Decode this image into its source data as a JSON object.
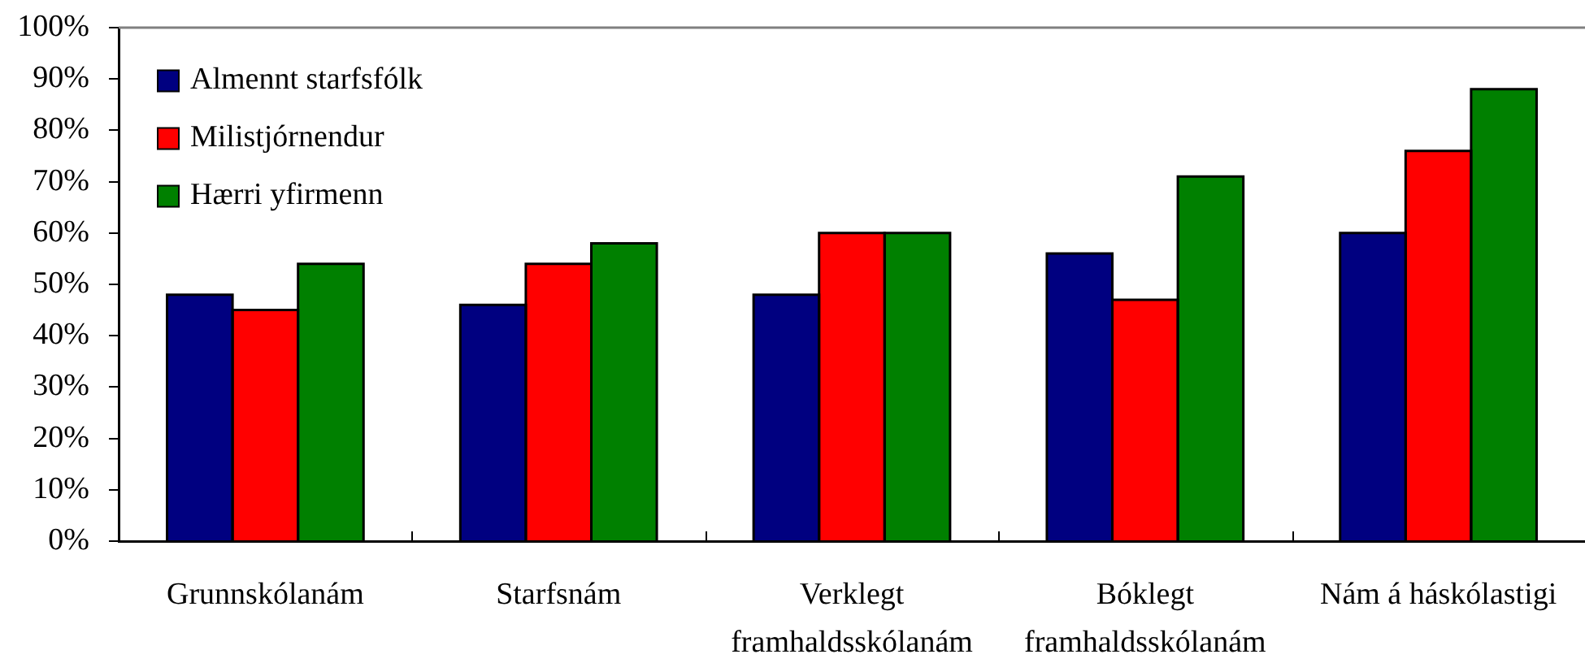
{
  "chart_data": {
    "type": "bar",
    "categories": [
      "Grunnskólanám",
      "Starfsnám",
      "Verklegt framhaldsskólanám",
      "Bóklegt framhaldsskólanám",
      "Nám á háskólastigi"
    ],
    "series": [
      {
        "name": "Almennt starfsfólk",
        "color": "#000080",
        "values": [
          48,
          46,
          48,
          56,
          60
        ]
      },
      {
        "name": "Milistjórnendur",
        "color": "#ff0000",
        "values": [
          45,
          54,
          60,
          47,
          76
        ]
      },
      {
        "name": "Hærri yfirmenn",
        "color": "#008000",
        "values": [
          54,
          58,
          60,
          71,
          88
        ]
      }
    ],
    "ylim": [
      0,
      100
    ],
    "yticks": [
      {
        "value": 0,
        "label": "0%"
      },
      {
        "value": 10,
        "label": "10%"
      },
      {
        "value": 20,
        "label": "20%"
      },
      {
        "value": 30,
        "label": "30%"
      },
      {
        "value": 40,
        "label": "40%"
      },
      {
        "value": 50,
        "label": "50%"
      },
      {
        "value": 60,
        "label": "60%"
      },
      {
        "value": 70,
        "label": "70%"
      },
      {
        "value": 80,
        "label": "80%"
      },
      {
        "value": 90,
        "label": "90%"
      },
      {
        "value": 100,
        "label": "100%"
      }
    ],
    "legend": "top left"
  }
}
